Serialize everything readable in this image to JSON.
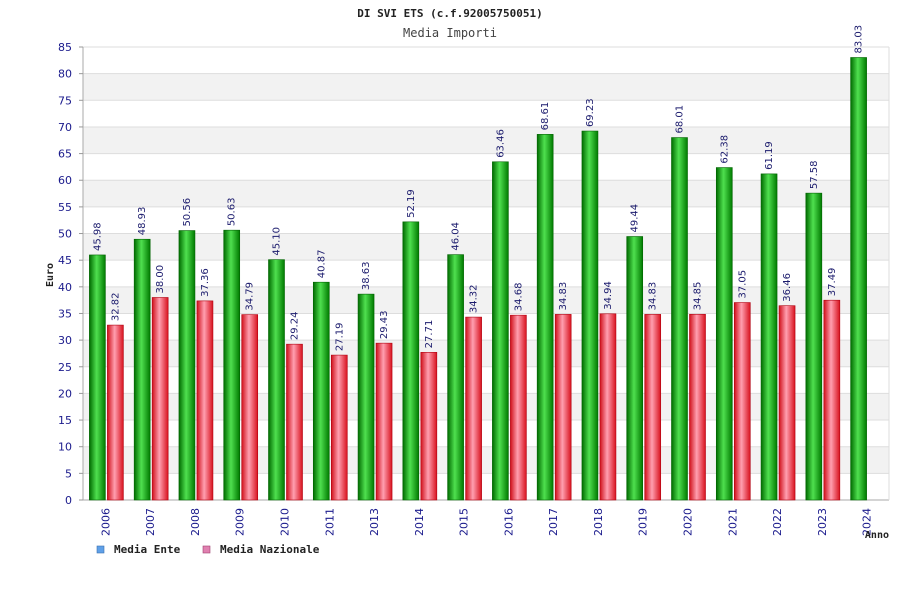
{
  "chart_data": {
    "type": "bar",
    "title": "DI SVI ETS (c.f.92005750051)",
    "subtitle": "Media Importi",
    "xlabel": "Anno",
    "ylabel": "Euro",
    "ylim": [
      0,
      85
    ],
    "ytick_step": 5,
    "grid": true,
    "legend_position": "bottom-left",
    "categories": [
      "2006",
      "2007",
      "2008",
      "2009",
      "2010",
      "2011",
      "2013",
      "2014",
      "2015",
      "2016",
      "2017",
      "2018",
      "2019",
      "2020",
      "2021",
      "2022",
      "2023",
      "2024"
    ],
    "series": [
      {
        "name": "Media Ente",
        "color": "#00a000",
        "values": [
          45.98,
          48.93,
          50.56,
          50.63,
          45.1,
          40.87,
          38.63,
          52.19,
          46.04,
          63.46,
          68.61,
          69.23,
          49.44,
          68.01,
          62.38,
          61.19,
          57.58,
          83.03
        ],
        "labels": [
          "45.98",
          "48.93",
          "50.56",
          "50.63",
          "45.10",
          "40.87",
          "38.63",
          "52.19",
          "46.04",
          "63.46",
          "68.61",
          "69.23",
          "49.44",
          "68.01",
          "62.38",
          "61.19",
          "57.58",
          "83.03"
        ]
      },
      {
        "name": "Media Nazionale",
        "color": "#e0202a",
        "values": [
          32.82,
          38.0,
          37.36,
          34.79,
          29.24,
          27.19,
          29.43,
          27.71,
          34.32,
          34.68,
          34.83,
          34.94,
          34.83,
          34.85,
          37.05,
          36.46,
          37.49,
          null
        ],
        "labels": [
          "32.82",
          "38.00",
          "37.36",
          "34.79",
          "29.24",
          "27.19",
          "29.43",
          "27.71",
          "34.32",
          "34.68",
          "34.83",
          "34.94",
          "34.83",
          "34.85",
          "37.05",
          "36.46",
          "37.49",
          null
        ]
      }
    ],
    "legend": [
      {
        "name": "Media Ente",
        "swatch_color": "#5fa0e8"
      },
      {
        "name": "Media Nazionale",
        "swatch_color": "#e080b0"
      }
    ]
  }
}
